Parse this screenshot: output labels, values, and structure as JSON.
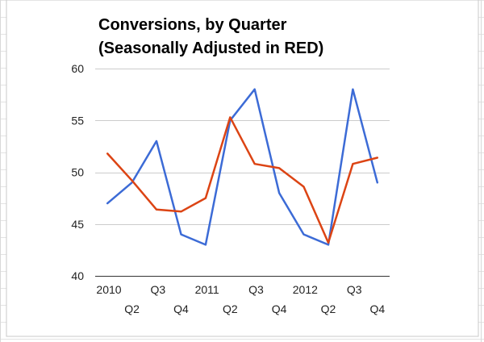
{
  "chart_data": {
    "type": "line",
    "title_lines": [
      "Conversions, by Quarter",
      "(Seasonally Adjusted in RED)"
    ],
    "xlabel": "",
    "ylabel": "",
    "ylim": [
      40,
      60
    ],
    "y_ticks": [
      40,
      45,
      50,
      55,
      60
    ],
    "grid": true,
    "legend": "none",
    "categories": [
      "2010",
      "Q2",
      "Q3",
      "Q4",
      "2011",
      "Q2",
      "Q3",
      "Q4",
      "2012",
      "Q2",
      "Q3",
      "Q4"
    ],
    "series": [
      {
        "color": "#3c6bd6",
        "values": [
          47,
          49,
          53,
          44,
          43,
          55,
          58,
          48,
          44,
          43,
          58,
          49
        ]
      },
      {
        "color": "#dc4414",
        "values": [
          51.8,
          49.2,
          46.4,
          46.2,
          47.5,
          55.3,
          50.8,
          50.4,
          48.6,
          43.2,
          50.8,
          51.4
        ]
      }
    ]
  }
}
